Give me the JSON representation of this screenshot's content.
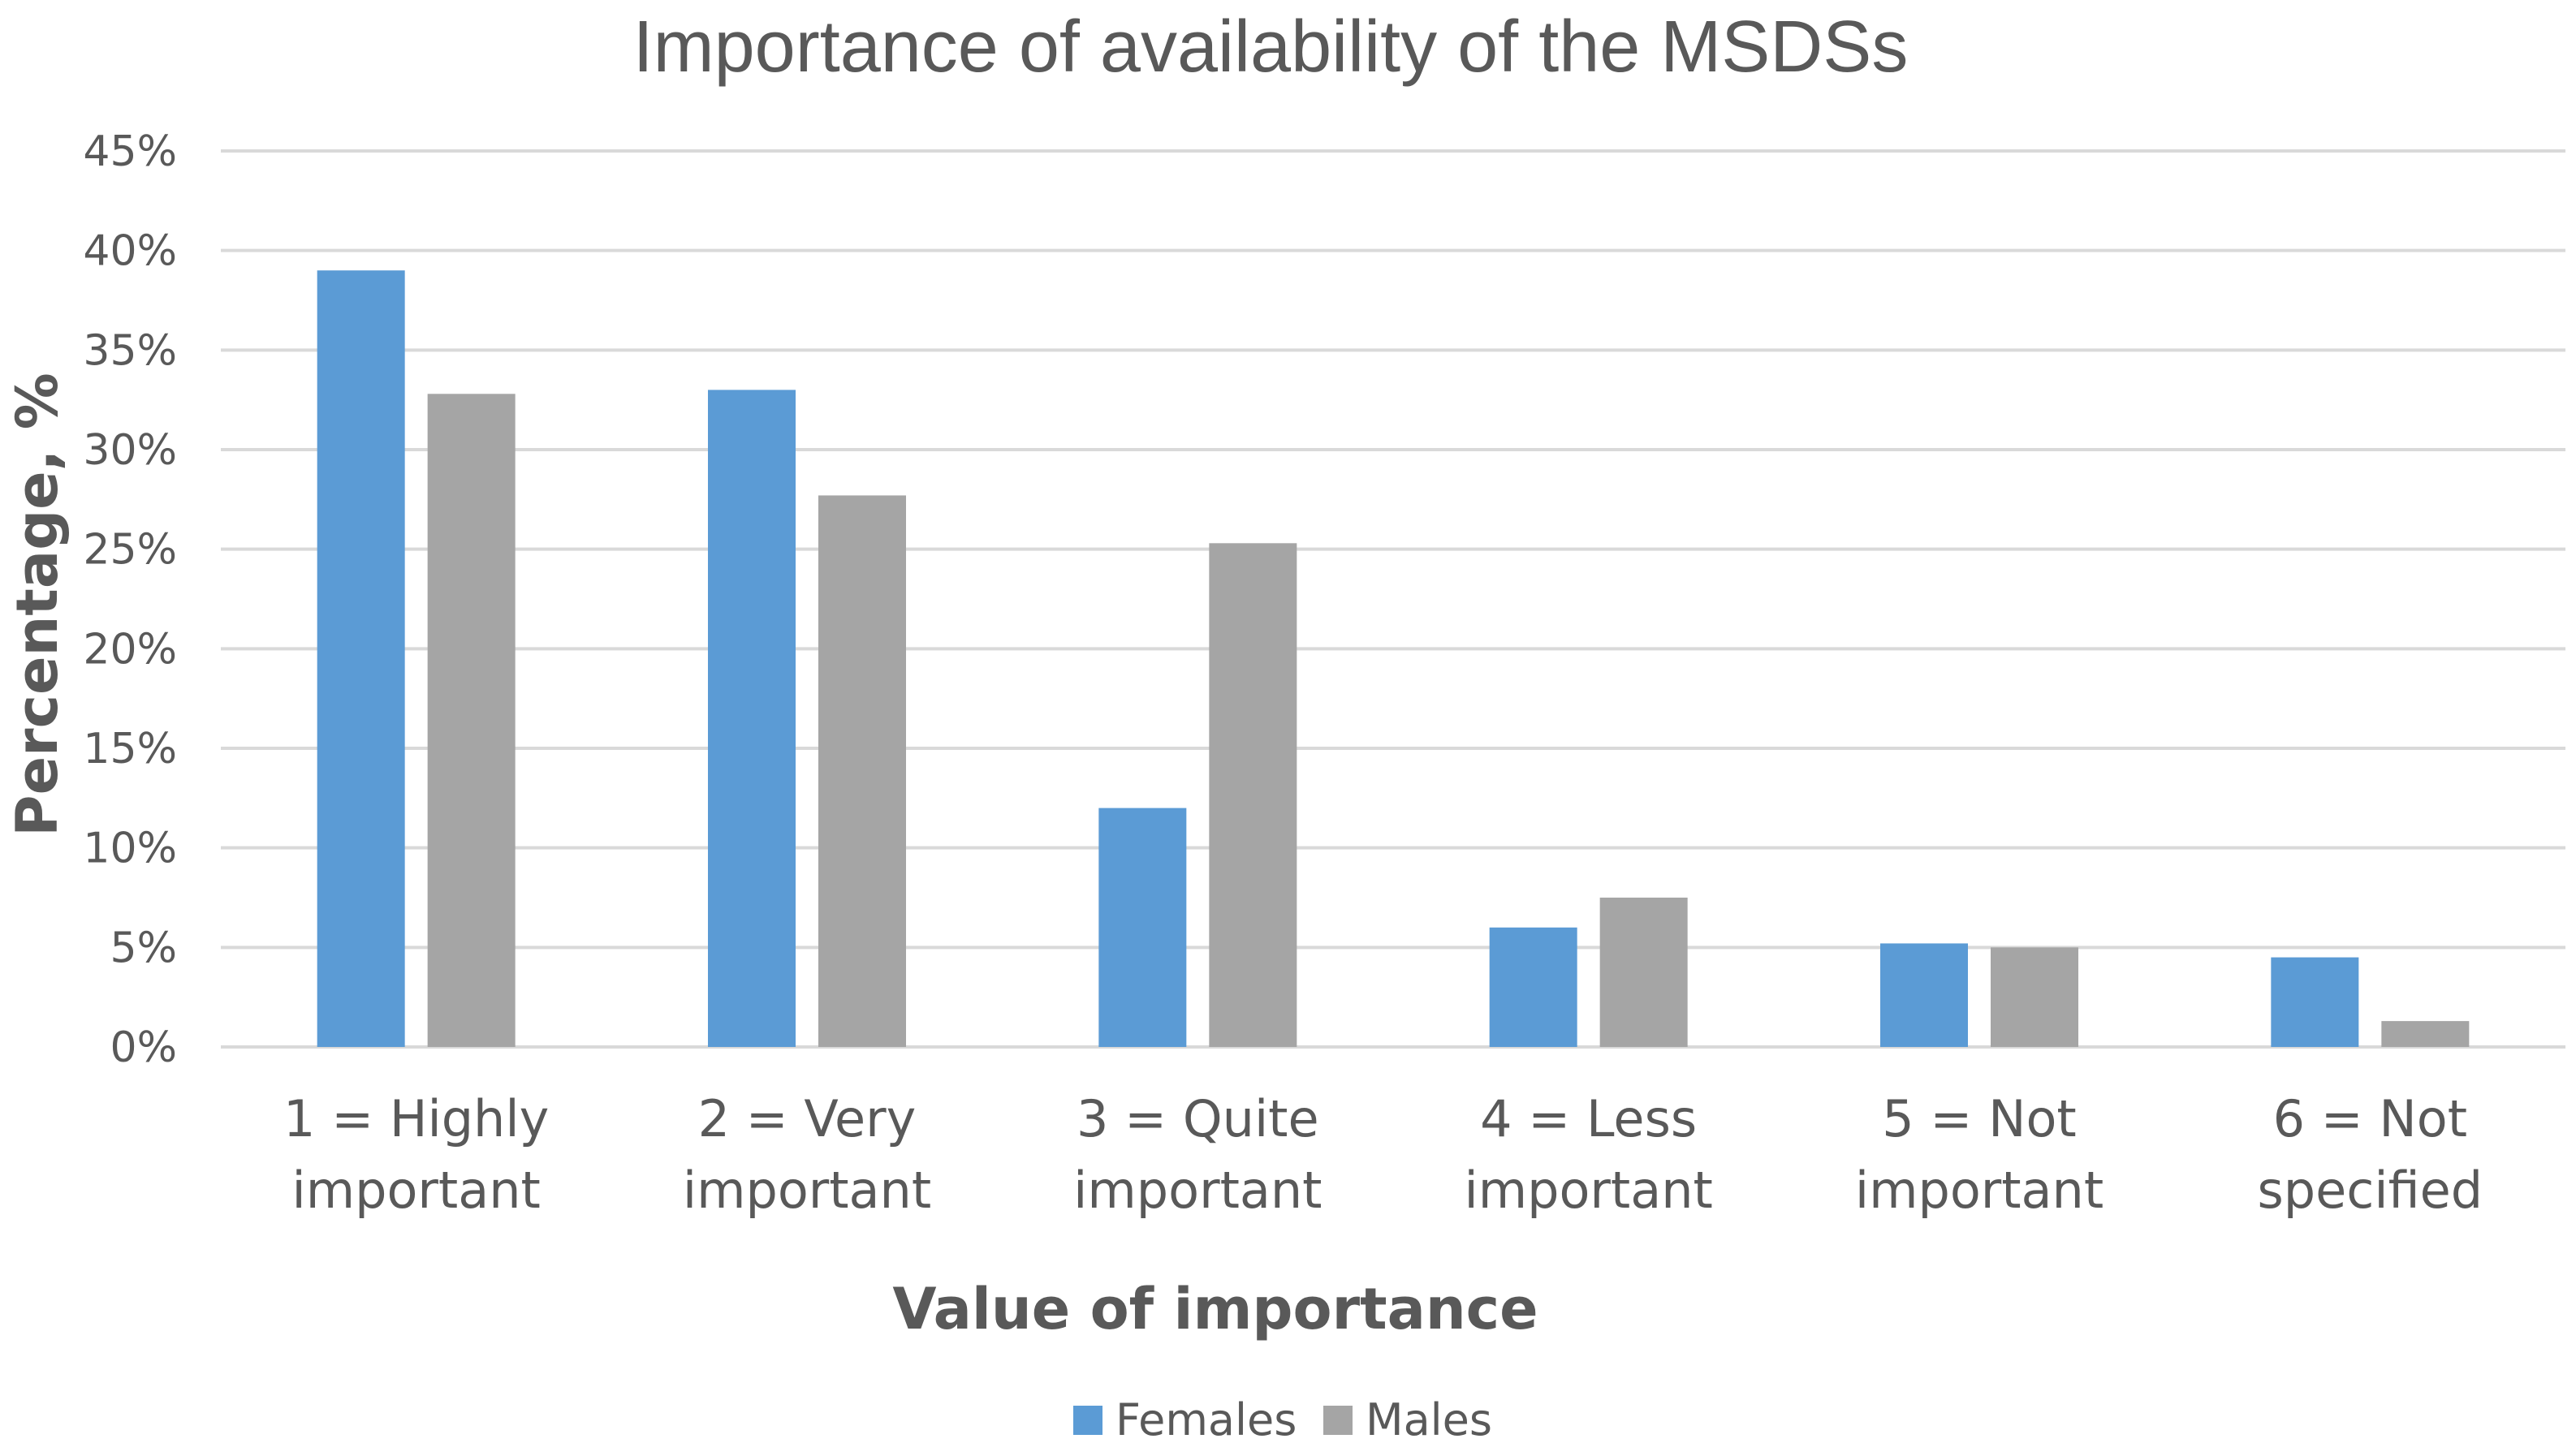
{
  "chart_data": {
    "type": "bar",
    "title": "Importance of availability of the MSDSs",
    "xlabel": "Value of importance",
    "ylabel": "Percentage, %",
    "ylim": [
      0,
      45
    ],
    "ytick_step": 5,
    "ytick_suffix": "%",
    "grid": true,
    "legend_position": "bottom",
    "categories": [
      [
        "1 = Highly",
        "important"
      ],
      [
        "2 = Very",
        "important"
      ],
      [
        "3 = Quite",
        "important"
      ],
      [
        "4 = Less",
        "important"
      ],
      [
        "5 = Not",
        "important"
      ],
      [
        "6 = Not",
        "specified"
      ]
    ],
    "series": [
      {
        "name": "Females",
        "color": "#5b9bd5",
        "values": [
          39,
          33,
          12,
          6,
          5.2,
          4.5
        ]
      },
      {
        "name": "Males",
        "color": "#a5a5a5",
        "values": [
          32.8,
          27.7,
          25.3,
          7.5,
          5.0,
          1.3
        ]
      }
    ]
  }
}
